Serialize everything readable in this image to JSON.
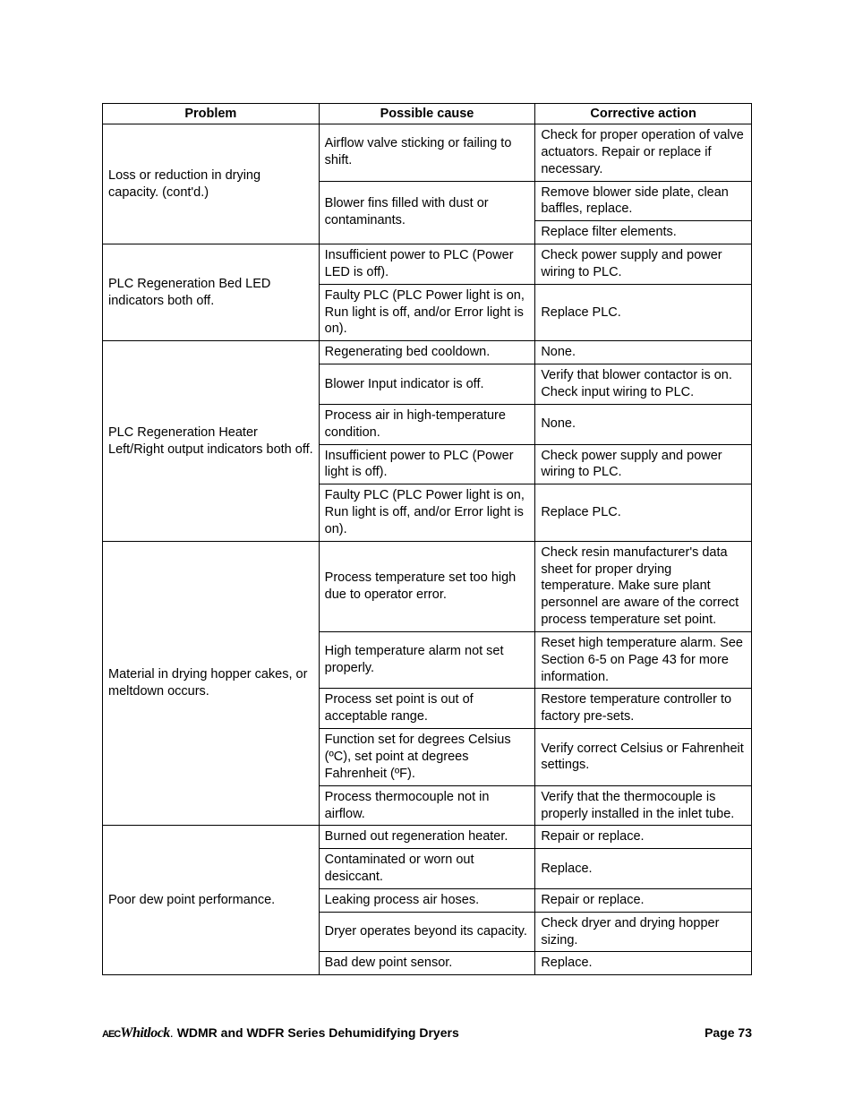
{
  "table": {
    "headers": {
      "problem": "Problem",
      "cause": "Possible cause",
      "action": "Corrective action"
    },
    "groups": [
      {
        "problem": "Loss or reduction in drying capacity. (cont'd.)",
        "rows": [
          {
            "cause": "Airflow valve sticking or failing to shift.",
            "action": "Check for proper operation of valve actuators. Repair or replace if necessary."
          },
          {
            "cause": "Blower fins filled with dust or contaminants.",
            "cause_rowspan": 2,
            "action": "Remove blower side plate, clean baffles, replace."
          },
          {
            "action": "Replace filter elements."
          }
        ]
      },
      {
        "problem": "PLC Regeneration Bed LED indicators both off.",
        "rows": [
          {
            "cause": "Insufficient power to PLC (Power LED is off).",
            "action": "Check power supply and power wiring to PLC."
          },
          {
            "cause": "Faulty PLC (PLC Power light is on, Run light is off, and/or Error light is on).",
            "action": "Replace PLC."
          }
        ]
      },
      {
        "problem": "PLC Regeneration Heater Left/Right output indicators both off.",
        "rows": [
          {
            "cause": "Regenerating bed cooldown.",
            "action": "None."
          },
          {
            "cause": "Blower Input indicator is off.",
            "action": "Verify that blower contactor is on. Check input wiring to PLC."
          },
          {
            "cause": "Process air in high-temperature condition.",
            "action": "None."
          },
          {
            "cause": "Insufficient power to PLC (Power light is off).",
            "action": "Check power supply and power wiring to PLC."
          },
          {
            "cause": "Faulty PLC (PLC Power light is on, Run light is off, and/or Error light is on).",
            "action": "Replace PLC."
          }
        ]
      },
      {
        "problem": "Material in drying hopper cakes, or meltdown occurs.",
        "rows": [
          {
            "cause": "Process temperature set too high due to operator error.",
            "action": "Check resin manufacturer's data sheet for proper drying temperature. Make sure plant personnel are aware of the correct process temperature set point."
          },
          {
            "cause": "High temperature alarm not set properly.",
            "action": "Reset high temperature alarm. See Section 6-5 on Page 43 for more information."
          },
          {
            "cause": "Process set point is out of acceptable range.",
            "action": "Restore temperature controller to factory pre-sets."
          },
          {
            "cause": "Function set for degrees Celsius (ºC), set point at degrees Fahrenheit (ºF).",
            "action": "Verify correct Celsius or Fahrenheit settings."
          },
          {
            "cause": "Process thermocouple not in airflow.",
            "action": "Verify that the thermocouple is properly installed in the inlet tube."
          }
        ]
      },
      {
        "problem": "Poor dew point performance.",
        "rows": [
          {
            "cause": "Burned out regeneration heater.",
            "action": "Repair or replace."
          },
          {
            "cause": "Contaminated or worn out desiccant.",
            "action": "Replace."
          },
          {
            "cause": "Leaking process air hoses.",
            "action": "Repair or replace."
          },
          {
            "cause": "Dryer operates beyond its capacity.",
            "action": "Check dryer and drying hopper sizing."
          },
          {
            "cause": "Bad dew point sensor.",
            "action": "Replace."
          }
        ]
      }
    ]
  },
  "footer": {
    "brand_prefix": "AEC",
    "brand": "Whitlock",
    "title_suffix": "WDMR and WDFR Series Dehumidifying Dryers",
    "page_label": "Page 73"
  }
}
